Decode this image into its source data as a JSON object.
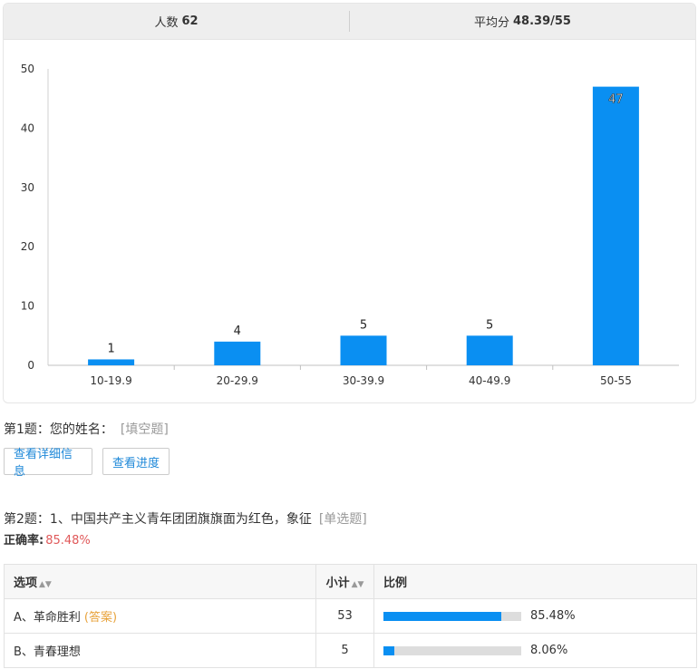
{
  "summary": {
    "people_label": "人数",
    "people_value": "62",
    "avg_label": "平均分",
    "avg_value": "48.39/55"
  },
  "chart_data": {
    "type": "bar",
    "categories": [
      "10-19.9",
      "20-29.9",
      "30-39.9",
      "40-49.9",
      "50-55"
    ],
    "values": [
      1,
      4,
      5,
      5,
      47
    ],
    "ylim": [
      0,
      50
    ],
    "yticks": [
      0,
      10,
      20,
      30,
      40,
      50
    ],
    "bar_color": "#0a8ff2",
    "grid": false
  },
  "question1": {
    "title": "第1题：您的姓名：",
    "type": "[填空题]",
    "btn_detail": "查看详细信息",
    "btn_progress": "查看进度"
  },
  "question2": {
    "title": "第2题：1、中国共产主义青年团团旗旗面为红色，象征",
    "type": "[单选题]",
    "accuracy_label": "正确率:",
    "accuracy_value": "85.48%",
    "table": {
      "headers": {
        "option": "选项",
        "count": "小计",
        "ratio": "比例"
      },
      "rows": [
        {
          "option": "A、革命胜利",
          "answer_tag": "(答案)",
          "count": "53",
          "ratio": 85.48,
          "ratio_label": "85.48%"
        },
        {
          "option": "B、青春理想",
          "answer_tag": "",
          "count": "5",
          "ratio": 8.06,
          "ratio_label": "8.06%"
        }
      ]
    }
  },
  "colors": {
    "accent": "#0a8ff2",
    "accuracy": "#e0595a",
    "answer": "#e8a33c",
    "link": "#1e88d8"
  }
}
